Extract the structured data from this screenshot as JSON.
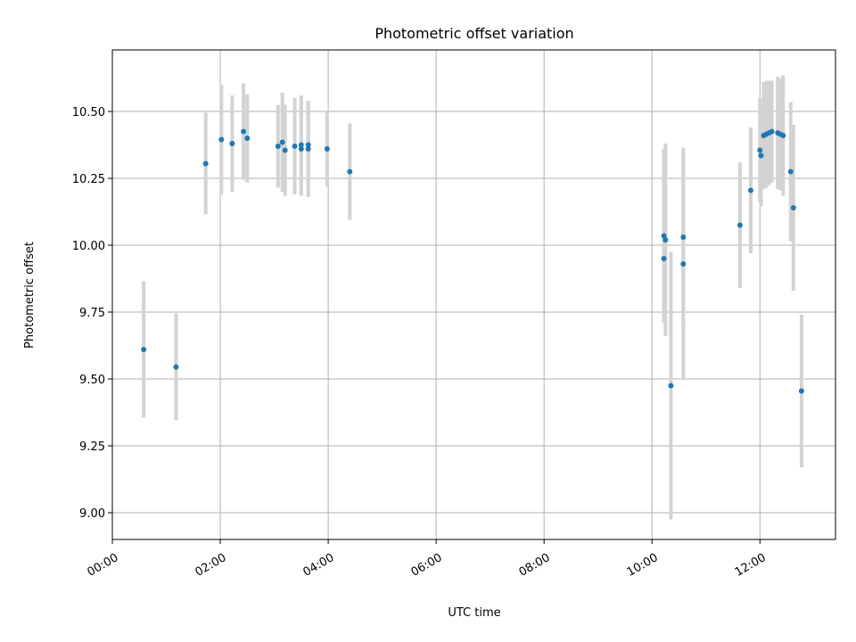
{
  "chart_data": {
    "type": "scatter",
    "title": "Photometric offset variation",
    "xlabel": "UTC time",
    "ylabel": "Photometric offset",
    "xlim": [
      0.0,
      13.4
    ],
    "ylim": [
      8.9,
      10.73
    ],
    "xticks": [
      {
        "v": 0,
        "label": "00:00"
      },
      {
        "v": 2,
        "label": "02:00"
      },
      {
        "v": 4,
        "label": "04:00"
      },
      {
        "v": 6,
        "label": "06:00"
      },
      {
        "v": 8,
        "label": "08:00"
      },
      {
        "v": 10,
        "label": "10:00"
      },
      {
        "v": 12,
        "label": "12:00"
      }
    ],
    "yticks": [
      {
        "v": 9.0,
        "label": "9.00"
      },
      {
        "v": 9.25,
        "label": "9.25"
      },
      {
        "v": 9.5,
        "label": "9.50"
      },
      {
        "v": 9.75,
        "label": "9.75"
      },
      {
        "v": 10.0,
        "label": "10.00"
      },
      {
        "v": 10.25,
        "label": "10.25"
      },
      {
        "v": 10.5,
        "label": "10.50"
      }
    ],
    "grid": true,
    "colors": {
      "point": "#1f77b4",
      "errorbar": "#d3d3d3"
    },
    "points": [
      {
        "x": 0.58,
        "y": 9.61,
        "err": 0.255
      },
      {
        "x": 1.18,
        "y": 9.545,
        "err": 0.2
      },
      {
        "x": 1.73,
        "y": 10.305,
        "err": 0.19
      },
      {
        "x": 2.02,
        "y": 10.395,
        "err": 0.205
      },
      {
        "x": 2.22,
        "y": 10.38,
        "err": 0.18
      },
      {
        "x": 2.43,
        "y": 10.425,
        "err": 0.18
      },
      {
        "x": 2.5,
        "y": 10.4,
        "err": 0.165
      },
      {
        "x": 3.07,
        "y": 10.37,
        "err": 0.155
      },
      {
        "x": 3.15,
        "y": 10.385,
        "err": 0.185
      },
      {
        "x": 3.2,
        "y": 10.355,
        "err": 0.17
      },
      {
        "x": 3.38,
        "y": 10.37,
        "err": 0.18
      },
      {
        "x": 3.5,
        "y": 10.36,
        "err": 0.175
      },
      {
        "x": 3.5,
        "y": 10.375,
        "err": 0.185
      },
      {
        "x": 3.63,
        "y": 10.36,
        "err": 0.18
      },
      {
        "x": 3.63,
        "y": 10.375,
        "err": 0.16
      },
      {
        "x": 3.98,
        "y": 10.36,
        "err": 0.14
      },
      {
        "x": 4.4,
        "y": 10.275,
        "err": 0.18
      },
      {
        "x": 10.22,
        "y": 10.035,
        "err": 0.325
      },
      {
        "x": 10.22,
        "y": 9.95,
        "err": 0.24
      },
      {
        "x": 10.25,
        "y": 10.02,
        "err": 0.36
      },
      {
        "x": 10.35,
        "y": 9.475,
        "err": 0.5
      },
      {
        "x": 10.58,
        "y": 10.03,
        "err": 0.335
      },
      {
        "x": 10.58,
        "y": 9.93,
        "err": 0.43
      },
      {
        "x": 11.63,
        "y": 10.075,
        "err": 0.235
      },
      {
        "x": 11.83,
        "y": 10.205,
        "err": 0.235
      },
      {
        "x": 12.0,
        "y": 10.355,
        "err": 0.195
      },
      {
        "x": 12.02,
        "y": 10.335,
        "err": 0.19
      },
      {
        "x": 12.07,
        "y": 10.41,
        "err": 0.2
      },
      {
        "x": 12.12,
        "y": 10.415,
        "err": 0.2
      },
      {
        "x": 12.17,
        "y": 10.42,
        "err": 0.195
      },
      {
        "x": 12.22,
        "y": 10.425,
        "err": 0.19
      },
      {
        "x": 12.33,
        "y": 10.42,
        "err": 0.21
      },
      {
        "x": 12.38,
        "y": 10.415,
        "err": 0.21
      },
      {
        "x": 12.43,
        "y": 10.41,
        "err": 0.225
      },
      {
        "x": 12.57,
        "y": 10.275,
        "err": 0.26
      },
      {
        "x": 12.62,
        "y": 10.14,
        "err": 0.31
      },
      {
        "x": 12.77,
        "y": 9.455,
        "err": 0.285
      }
    ]
  }
}
